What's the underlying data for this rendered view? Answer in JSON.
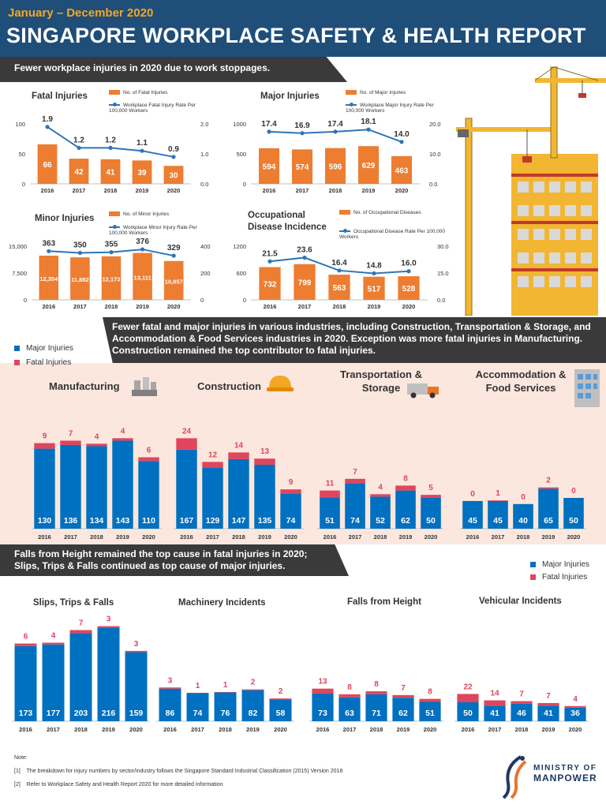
{
  "header": {
    "subtitle": "January – December 2020",
    "title": "SINGAPORE WORKPLACE SAFETY & HEALTH REPORT"
  },
  "banners": {
    "b1": "Fewer workplace injuries in 2020 due to work stoppages.",
    "b2": "Fewer fatal and major injuries in various industries, including Construction, Transportation & Storage, and Accommodation & Food Services industries in 2020.  Exception was more fatal injuries in Manufacturing. Construction remained the top contributor to fatal injuries.",
    "b3": "Falls from Height remained the top cause in fatal injuries in 2020; Slips, Trips & Falls continued as top cause of major injuries."
  },
  "legend_labels": {
    "major": "Major Injuries",
    "fatal": "Fatal Injuries"
  },
  "colors": {
    "header": "#1f4e79",
    "orange": "#ed7d31",
    "line": "#2e75b6",
    "major": "#0070c0",
    "fatal": "#e0455e",
    "accent": "#f5a623"
  },
  "chart_data": [
    {
      "id": "fatal",
      "type": "bar",
      "title": "Fatal Injuries",
      "categories": [
        "2016",
        "2017",
        "2018",
        "2019",
        "2020"
      ],
      "bar_legend": "No. of Fatal Injuries",
      "line_legend": "Workplace Fatal Injury Rate Per 100,000 Workers",
      "bars": [
        66,
        42,
        41,
        39,
        30
      ],
      "bar_labels": [
        "66",
        "42",
        "41",
        "39",
        "30"
      ],
      "line": [
        1.9,
        1.2,
        1.2,
        1.1,
        0.9
      ],
      "line_labels": [
        "1.9",
        "1.2",
        "1.2",
        "1.1",
        "0.9"
      ],
      "ylim": [
        0,
        100
      ],
      "ylim_right": [
        0,
        2.0
      ],
      "yticks": [
        "0",
        "50",
        "100"
      ],
      "yticks_right": [
        "0.0",
        "1.0",
        "2.0"
      ]
    },
    {
      "id": "major",
      "type": "bar",
      "title": "Major Injuries",
      "categories": [
        "2016",
        "2017",
        "2018",
        "2019",
        "2020"
      ],
      "bar_legend": "No. of Major Injuries",
      "line_legend": "Workplace Major Injury Rate Per 100,000 Workers",
      "bars": [
        594,
        574,
        596,
        629,
        463
      ],
      "bar_labels": [
        "594",
        "574",
        "596",
        "629",
        "463"
      ],
      "line": [
        17.4,
        16.9,
        17.4,
        18.1,
        14.0
      ],
      "line_labels": [
        "17.4",
        "16.9",
        "17.4",
        "18.1",
        "14.0"
      ],
      "ylim": [
        0,
        1000
      ],
      "ylim_right": [
        0,
        20
      ],
      "yticks": [
        "0",
        "500",
        "1000"
      ],
      "yticks_right": [
        "0.0",
        "10.0",
        "20.0"
      ]
    },
    {
      "id": "minor",
      "type": "bar",
      "title": "Minor Injuries",
      "categories": [
        "2016",
        "2017",
        "2018",
        "2019",
        "2020"
      ],
      "bar_legend": "No. of Minor Injuries",
      "line_legend": "Workplace Minor Injury Rate Per 100,000 Workers",
      "bars": [
        12354,
        11882,
        12173,
        13111,
        10857
      ],
      "bar_labels": [
        "12,354",
        "11,882",
        "12,173",
        "13,111",
        "10,857"
      ],
      "line": [
        363,
        350,
        355,
        376,
        329
      ],
      "line_labels": [
        "363",
        "350",
        "355",
        "376",
        "329"
      ],
      "ylim": [
        0,
        15000
      ],
      "ylim_right": [
        0,
        400
      ],
      "yticks": [
        "0",
        "7,500",
        "15,000"
      ],
      "yticks_right": [
        "0",
        "200",
        "400"
      ]
    },
    {
      "id": "occ",
      "type": "bar",
      "title": "Occupational Disease Incidence",
      "categories": [
        "2016",
        "2017",
        "2018",
        "2019",
        "2020"
      ],
      "bar_legend": "No. of Occupational Diseases",
      "line_legend": "Occupational Disease Rate Per 100,000 Workers",
      "bars": [
        732,
        799,
        563,
        517,
        528
      ],
      "bar_labels": [
        "732",
        "799",
        "563",
        "517",
        "528"
      ],
      "line": [
        21.5,
        23.6,
        16.4,
        14.8,
        16.0
      ],
      "line_labels": [
        "21.5",
        "23.6",
        "16.4",
        "14.8",
        "16.0"
      ],
      "ylim": [
        0,
        1200
      ],
      "ylim_right": [
        0,
        30
      ],
      "yticks": [
        "0",
        "600",
        "1200"
      ],
      "yticks_right": [
        "0.0",
        "15.0",
        "30.0"
      ]
    },
    {
      "id": "manufacturing",
      "type": "bar",
      "title": "Manufacturing",
      "categories": [
        "2016",
        "2017",
        "2018",
        "2019",
        "2020"
      ],
      "series": [
        {
          "name": "Major Injuries",
          "values": [
            130,
            136,
            134,
            143,
            110
          ]
        },
        {
          "name": "Fatal Injuries",
          "values": [
            9,
            7,
            4,
            4,
            6
          ]
        }
      ]
    },
    {
      "id": "construction",
      "type": "bar",
      "title": "Construction",
      "categories": [
        "2016",
        "2017",
        "2018",
        "2019",
        "2020"
      ],
      "series": [
        {
          "name": "Major Injuries",
          "values": [
            167,
            129,
            147,
            135,
            74
          ]
        },
        {
          "name": "Fatal Injuries",
          "values": [
            24,
            12,
            14,
            13,
            9
          ]
        }
      ]
    },
    {
      "id": "transport",
      "type": "bar",
      "title": "Transportation & Storage",
      "categories": [
        "2016",
        "2017",
        "2018",
        "2019",
        "2020"
      ],
      "series": [
        {
          "name": "Major Injuries",
          "values": [
            51,
            74,
            52,
            62,
            50
          ]
        },
        {
          "name": "Fatal Injuries",
          "values": [
            11,
            7,
            4,
            8,
            5
          ]
        }
      ]
    },
    {
      "id": "accommodation",
      "type": "bar",
      "title": "Accommodation & Food Services",
      "categories": [
        "2016",
        "2017",
        "2018",
        "2019",
        "2020"
      ],
      "series": [
        {
          "name": "Major Injuries",
          "values": [
            45,
            45,
            40,
            65,
            50
          ]
        },
        {
          "name": "Fatal Injuries",
          "values": [
            0,
            1,
            0,
            2,
            0
          ]
        }
      ]
    },
    {
      "id": "slips",
      "type": "bar",
      "title": "Slips, Trips & Falls",
      "categories": [
        "2016",
        "2017",
        "2018",
        "2019",
        "2020"
      ],
      "series": [
        {
          "name": "Major Injuries",
          "values": [
            173,
            177,
            203,
            216,
            159
          ]
        },
        {
          "name": "Fatal Injuries",
          "values": [
            6,
            4,
            7,
            3,
            3
          ]
        }
      ]
    },
    {
      "id": "machinery",
      "type": "bar",
      "title": "Machinery Incidents",
      "categories": [
        "2016",
        "2017",
        "2018",
        "2019",
        "2020"
      ],
      "series": [
        {
          "name": "Major Injuries",
          "values": [
            86,
            74,
            76,
            82,
            58
          ]
        },
        {
          "name": "Fatal Injuries",
          "values": [
            3,
            1,
            1,
            2,
            2
          ]
        }
      ]
    },
    {
      "id": "falls",
      "type": "bar",
      "title": "Falls from Height",
      "categories": [
        "2016",
        "2017",
        "2018",
        "2019",
        "2020"
      ],
      "series": [
        {
          "name": "Major Injuries",
          "values": [
            73,
            63,
            71,
            62,
            51
          ]
        },
        {
          "name": "Fatal Injuries",
          "values": [
            13,
            8,
            8,
            7,
            8
          ]
        }
      ]
    },
    {
      "id": "vehicular",
      "type": "bar",
      "title": "Vehicular Incidents",
      "categories": [
        "2016",
        "2017",
        "2018",
        "2019",
        "2020"
      ],
      "series": [
        {
          "name": "Major Injuries",
          "values": [
            50,
            41,
            46,
            41,
            36
          ]
        },
        {
          "name": "Fatal Injuries",
          "values": [
            22,
            14,
            7,
            7,
            4
          ]
        }
      ]
    }
  ],
  "notes": {
    "heading": "Note:",
    "n1_num": "[1]",
    "n1": "The breakdown for injury numbers by sector/industry follows the Singapore Standard Industrial Classification (2015) Version 2018",
    "n2_num": "[2]",
    "n2": "Refer to Workplace Safety and Health Report 2020 for more detailed information"
  },
  "logo": {
    "line1": "MINISTRY OF",
    "line2": "MANPOWER"
  }
}
